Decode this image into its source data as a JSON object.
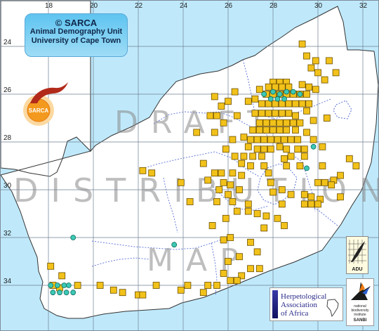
{
  "map": {
    "longitude_labels": [
      "18",
      "20",
      "22",
      "24",
      "26",
      "28",
      "30",
      "32"
    ],
    "latitude_labels": [
      "24",
      "26",
      "28",
      "30",
      "32",
      "34"
    ],
    "watermark": [
      "DRAFT",
      "DISTRIBUTION",
      "MAP"
    ],
    "colors": {
      "sea": "#bfe9fb",
      "land": "#ffffff",
      "record_square": "#f2c21a",
      "record_dot": "#3cc8b4",
      "rivers": "#5a6fd8",
      "boundaries": "#5a6fd8"
    },
    "records": {
      "squares": [
        [
          29.3,
          23.9
        ],
        [
          29.5,
          24.4
        ],
        [
          29.7,
          24.9
        ],
        [
          29.9,
          24.6
        ],
        [
          30.5,
          24.6
        ],
        [
          30.0,
          25.1
        ],
        [
          30.3,
          25.4
        ],
        [
          30.8,
          25.1
        ],
        [
          28.0,
          25.5
        ],
        [
          28.3,
          25.5
        ],
        [
          28.6,
          25.5
        ],
        [
          27.8,
          25.7
        ],
        [
          28.1,
          25.7
        ],
        [
          28.4,
          25.7
        ],
        [
          28.7,
          25.7
        ],
        [
          29.3,
          25.6
        ],
        [
          29.6,
          25.7
        ],
        [
          29.9,
          25.8
        ],
        [
          26.3,
          25.9
        ],
        [
          27.4,
          25.8
        ],
        [
          27.7,
          26.0
        ],
        [
          28.0,
          26.0
        ],
        [
          28.3,
          26.0
        ],
        [
          28.6,
          26.0
        ],
        [
          28.9,
          26.0
        ],
        [
          29.2,
          26.0
        ],
        [
          29.5,
          26.0
        ],
        [
          25.4,
          26.1
        ],
        [
          25.7,
          26.5
        ],
        [
          26.0,
          26.3
        ],
        [
          26.9,
          26.3
        ],
        [
          27.2,
          26.2
        ],
        [
          27.5,
          26.4
        ],
        [
          27.8,
          26.4
        ],
        [
          28.1,
          26.4
        ],
        [
          28.4,
          26.4
        ],
        [
          28.7,
          26.4
        ],
        [
          29.0,
          26.4
        ],
        [
          29.3,
          26.4
        ],
        [
          29.6,
          26.4
        ],
        [
          25.2,
          26.9
        ],
        [
          25.5,
          26.9
        ],
        [
          26.4,
          26.9
        ],
        [
          27.2,
          26.8
        ],
        [
          27.5,
          26.8
        ],
        [
          27.8,
          26.8
        ],
        [
          28.1,
          26.8
        ],
        [
          28.4,
          26.8
        ],
        [
          28.7,
          26.8
        ],
        [
          29.0,
          26.9
        ],
        [
          29.5,
          26.7
        ],
        [
          30.4,
          27.0
        ],
        [
          25.8,
          27.2
        ],
        [
          27.4,
          27.2
        ],
        [
          27.7,
          27.2
        ],
        [
          28.0,
          27.2
        ],
        [
          28.3,
          27.2
        ],
        [
          28.6,
          27.2
        ],
        [
          28.9,
          27.2
        ],
        [
          29.2,
          27.2
        ],
        [
          29.8,
          27.1
        ],
        [
          24.6,
          27.6
        ],
        [
          25.4,
          27.6
        ],
        [
          27.1,
          27.5
        ],
        [
          27.4,
          27.5
        ],
        [
          27.7,
          27.5
        ],
        [
          28.0,
          27.5
        ],
        [
          28.3,
          27.5
        ],
        [
          28.6,
          27.5
        ],
        [
          29.0,
          27.5
        ],
        [
          29.5,
          27.6
        ],
        [
          26.2,
          27.9
        ],
        [
          26.7,
          27.8
        ],
        [
          27.0,
          27.9
        ],
        [
          27.3,
          27.9
        ],
        [
          27.6,
          27.9
        ],
        [
          27.9,
          27.9
        ],
        [
          28.2,
          27.9
        ],
        [
          28.5,
          27.9
        ],
        [
          28.8,
          27.9
        ],
        [
          29.1,
          27.9
        ],
        [
          29.8,
          27.9
        ],
        [
          25.9,
          28.3
        ],
        [
          26.9,
          28.2
        ],
        [
          27.3,
          28.3
        ],
        [
          27.6,
          28.3
        ],
        [
          27.9,
          28.3
        ],
        [
          28.3,
          28.2
        ],
        [
          28.6,
          28.3
        ],
        [
          29.1,
          28.3
        ],
        [
          29.4,
          28.3
        ],
        [
          30.2,
          28.2
        ],
        [
          26.3,
          28.6
        ],
        [
          26.7,
          28.6
        ],
        [
          27.1,
          28.6
        ],
        [
          27.5,
          28.6
        ],
        [
          28.5,
          28.7
        ],
        [
          28.8,
          28.6
        ],
        [
          29.4,
          28.6
        ],
        [
          24.9,
          28.9
        ],
        [
          26.6,
          28.9
        ],
        [
          27.0,
          29.0
        ],
        [
          27.6,
          29.0
        ],
        [
          28.6,
          29.0
        ],
        [
          29.2,
          29.0
        ],
        [
          30.2,
          29.0
        ],
        [
          31.4,
          28.7
        ],
        [
          31.7,
          29.0
        ],
        [
          22.2,
          29.2
        ],
        [
          25.4,
          29.3
        ],
        [
          25.7,
          29.3
        ],
        [
          26.2,
          29.3
        ],
        [
          26.6,
          29.4
        ],
        [
          27.8,
          29.3
        ],
        [
          31.0,
          29.4
        ],
        [
          30.7,
          29.6
        ],
        [
          23.9,
          29.7
        ],
        [
          25.1,
          29.6
        ],
        [
          25.8,
          29.7
        ],
        [
          26.1,
          29.8
        ],
        [
          27.9,
          29.7
        ],
        [
          30.0,
          29.7
        ],
        [
          30.3,
          29.7
        ],
        [
          30.6,
          29.8
        ],
        [
          25.6,
          30.0
        ],
        [
          26.0,
          30.2
        ],
        [
          26.5,
          30.0
        ],
        [
          28.0,
          30.1
        ],
        [
          28.4,
          30.0
        ],
        [
          28.8,
          30.2
        ],
        [
          29.4,
          30.2
        ],
        [
          29.7,
          30.3
        ],
        [
          30.1,
          30.4
        ],
        [
          31.0,
          30.3
        ],
        [
          25.5,
          30.5
        ],
        [
          26.2,
          30.5
        ],
        [
          26.9,
          30.6
        ],
        [
          28.4,
          30.6
        ],
        [
          29.4,
          30.6
        ],
        [
          29.7,
          30.6
        ],
        [
          30.0,
          30.6
        ],
        [
          26.4,
          30.9
        ],
        [
          26.9,
          30.9
        ],
        [
          27.3,
          31.0
        ],
        [
          27.7,
          31.1
        ],
        [
          28.2,
          31.2
        ],
        [
          28.5,
          31.5
        ],
        [
          25.8,
          32.1
        ],
        [
          26.1,
          32.0
        ],
        [
          27.0,
          32.2
        ],
        [
          27.3,
          32.6
        ],
        [
          26.5,
          32.8
        ],
        [
          26.0,
          33.0
        ],
        [
          25.8,
          33.5
        ],
        [
          27.0,
          33.3
        ],
        [
          26.6,
          33.6
        ],
        [
          22.6,
          29.3
        ],
        [
          24.3,
          30.5
        ],
        [
          25.3,
          31.5
        ],
        [
          25.9,
          31.2
        ],
        [
          27.6,
          31.6
        ],
        [
          18.1,
          33.2
        ],
        [
          18.6,
          33.6
        ],
        [
          18.2,
          34.0
        ],
        [
          18.5,
          34.1
        ],
        [
          19.3,
          34.0
        ],
        [
          20.3,
          34.0
        ],
        [
          20.9,
          34.2
        ],
        [
          21.3,
          34.3
        ],
        [
          22.0,
          34.4
        ],
        [
          22.2,
          34.4
        ],
        [
          23.9,
          34.2
        ],
        [
          24.9,
          34.3
        ],
        [
          25.1,
          34.0
        ],
        [
          25.5,
          34.0
        ],
        [
          26.1,
          33.8
        ],
        [
          26.4,
          33.8
        ],
        [
          27.4,
          33.3
        ],
        [
          22.8,
          34.0
        ],
        [
          24.2,
          34.0
        ]
      ],
      "dots": [
        [
          27.6,
          26.0
        ],
        [
          28.0,
          25.9
        ],
        [
          28.3,
          26.0
        ],
        [
          28.6,
          25.9
        ],
        [
          28.9,
          25.9
        ],
        [
          29.2,
          26.0
        ],
        [
          27.9,
          26.2
        ],
        [
          28.2,
          26.2
        ],
        [
          28.5,
          26.2
        ],
        [
          29.8,
          28.2
        ],
        [
          29.5,
          29.1
        ],
        [
          19.1,
          32.0
        ],
        [
          23.6,
          32.3
        ],
        [
          18.1,
          34.0
        ],
        [
          18.4,
          34.0
        ],
        [
          18.7,
          34.0
        ],
        [
          18.9,
          34.0
        ],
        [
          18.2,
          34.3
        ],
        [
          18.5,
          34.3
        ],
        [
          18.8,
          34.3
        ],
        [
          19.1,
          34.3
        ]
      ]
    }
  },
  "credit": {
    "line1": "© SARCA",
    "line2": "Animal Demography Unit",
    "line3": "University of Cape Town"
  },
  "sarca_logo": {
    "label": "SARCA"
  },
  "herpetological_logo": {
    "line1": "Herpetological",
    "line2": "Association",
    "line3": "of Africa"
  },
  "adu_logo": {
    "label": "ADU"
  },
  "sanbi_logo": {
    "line1": "national",
    "line2": "biodiversity",
    "line3": "institute",
    "line4": "SANBI"
  }
}
